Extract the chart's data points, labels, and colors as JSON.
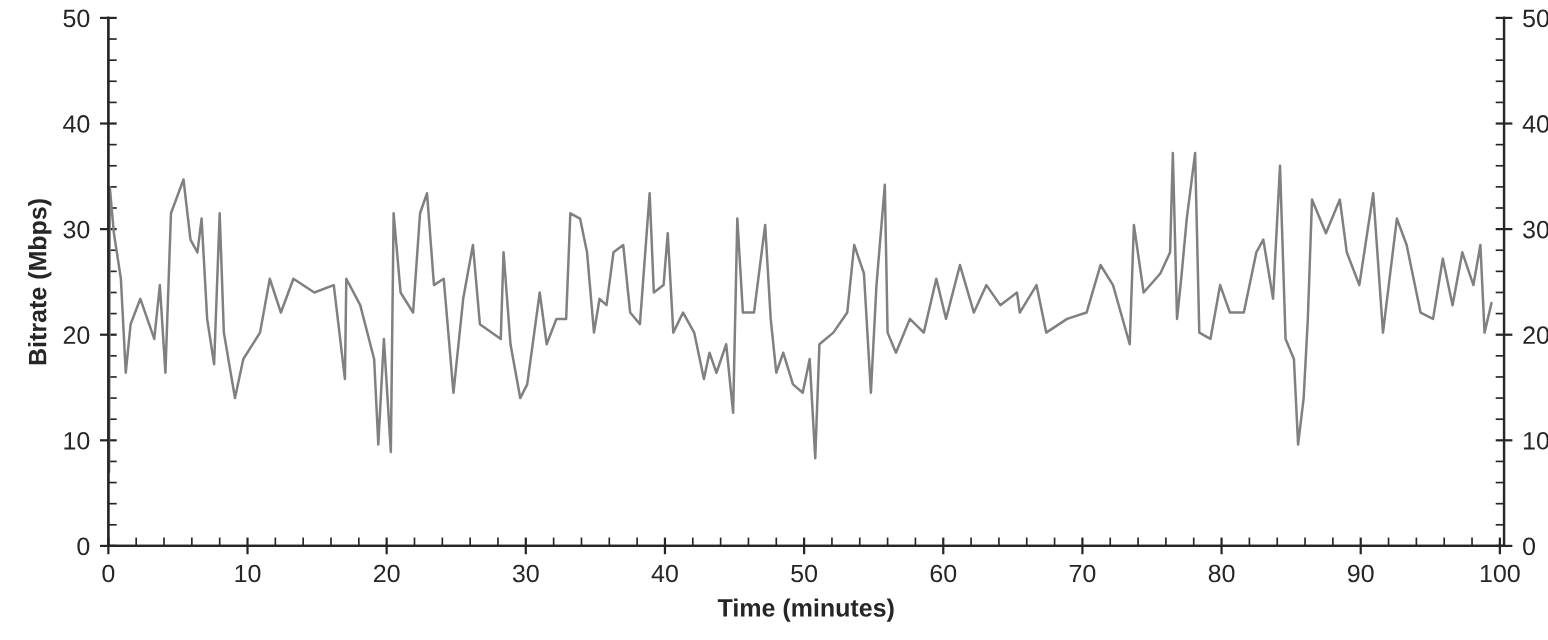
{
  "chart_data": {
    "type": "line",
    "xlabel": "Time (minutes)",
    "ylabel": "Bitrate (Mbps)",
    "xlim": [
      0,
      100.3
    ],
    "xticks": [
      0,
      10,
      20,
      30,
      40,
      50,
      60,
      70,
      80,
      90,
      100
    ],
    "ylim": [
      0,
      50
    ],
    "yticks": [
      0,
      10,
      20,
      30,
      40,
      50
    ],
    "y2lim": [
      0,
      50
    ],
    "y2ticks": [
      0,
      10,
      20,
      30,
      40,
      50
    ],
    "marker": "none",
    "line_style": "solid",
    "series": [
      {
        "color": "#808080",
        "x": [
          0,
          0.05,
          0.1,
          0.4,
          0.9,
          1.25,
          1.6,
          2.3,
          3.3,
          3.7,
          4.1,
          4.5,
          5.4,
          5.9,
          6.4,
          6.7,
          7.1,
          7.6,
          8.0,
          8.3,
          9.1,
          9.7,
          10.9,
          11.6,
          12.4,
          13.3,
          14.8,
          16.2,
          17.0,
          17.1,
          18.1,
          19.1,
          19.4,
          19.8,
          20.3,
          20.5,
          21.0,
          21.9,
          22.4,
          22.9,
          23.4,
          24.1,
          24.8,
          25.5,
          26.2,
          26.7,
          28.2,
          28.4,
          28.9,
          29.6,
          30.1,
          31.0,
          31.5,
          32.2,
          32.9,
          33.2,
          33.9,
          34.4,
          34.9,
          35.3,
          35.8,
          36.3,
          37.0,
          37.5,
          38.2,
          38.9,
          39.2,
          39.9,
          40.2,
          40.6,
          41.3,
          42.1,
          42.8,
          43.2,
          43.7,
          44.4,
          44.9,
          45.2,
          45.6,
          46.4,
          47.2,
          47.6,
          48.0,
          48.5,
          49.2,
          49.9,
          50.4,
          50.8,
          51.1,
          52.1,
          53.1,
          53.6,
          54.3,
          54.8,
          55.2,
          55.8,
          56.0,
          56.6,
          57.6,
          58.6,
          59.5,
          60.2,
          61.2,
          62.2,
          63.1,
          64.1,
          65.3,
          65.5,
          66.7,
          67.4,
          68.9,
          70.3,
          71.3,
          72.2,
          73.4,
          73.7,
          74.4,
          75.6,
          76.3,
          76.5,
          76.8,
          77.1,
          77.5,
          78.1,
          78.4,
          79.2,
          79.9,
          80.6,
          81.6,
          82.5,
          83.0,
          83.7,
          84.2,
          84.6,
          85.2,
          85.5,
          85.9,
          86.2,
          86.5,
          87.5,
          88.5,
          89.0,
          89.9,
          90.9,
          91.6,
          92.6,
          93.3,
          94.3,
          95.2,
          95.9,
          96.6,
          97.3,
          98.1,
          98.6,
          98.9,
          99.4
        ],
        "values": [
          34,
          7,
          34,
          29.6,
          25.3,
          16.4,
          21,
          23.4,
          19.6,
          24.7,
          16.4,
          31.5,
          34.7,
          29,
          27.8,
          31,
          21.5,
          17.2,
          31.5,
          20.2,
          14,
          17.7,
          20.2,
          25.3,
          22.1,
          25.3,
          24,
          24.7,
          15.8,
          25.3,
          22.8,
          17.7,
          9.6,
          19.6,
          8.9,
          31.5,
          24,
          22.1,
          31.5,
          33.4,
          24.7,
          25.3,
          14.5,
          23.4,
          28.5,
          21,
          19.6,
          27.8,
          19.1,
          14,
          15.3,
          24,
          19.1,
          21.5,
          21.5,
          31.5,
          31,
          27.8,
          20.2,
          23.4,
          22.8,
          27.8,
          28.5,
          22.1,
          21,
          33.4,
          24,
          24.7,
          29.6,
          20.2,
          22.1,
          20.2,
          15.8,
          18.3,
          16.4,
          19.1,
          12.6,
          31,
          22.1,
          22.1,
          30.4,
          21.5,
          16.4,
          18.3,
          15.3,
          14.5,
          17.7,
          8.3,
          19.1,
          20.2,
          22.1,
          28.5,
          25.8,
          14.5,
          24.7,
          34.2,
          20.2,
          18.3,
          21.5,
          20.2,
          25.3,
          21.5,
          26.6,
          22.1,
          24.7,
          22.8,
          24,
          22.1,
          24.7,
          20.2,
          21.5,
          22.1,
          26.6,
          24.7,
          19.1,
          30.4,
          24,
          25.8,
          27.8,
          37.2,
          21.5,
          25.3,
          31,
          37.2,
          20.2,
          19.6,
          24.7,
          22.1,
          22.1,
          27.8,
          29,
          23.4,
          36,
          19.6,
          17.7,
          9.6,
          14,
          21.5,
          32.8,
          29.6,
          32.8,
          27.8,
          24.7,
          33.4,
          20.2,
          31,
          28.5,
          22.1,
          21.5,
          27.2,
          22.8,
          27.8,
          24.7,
          28.5,
          20.2,
          23
        ]
      }
    ]
  }
}
